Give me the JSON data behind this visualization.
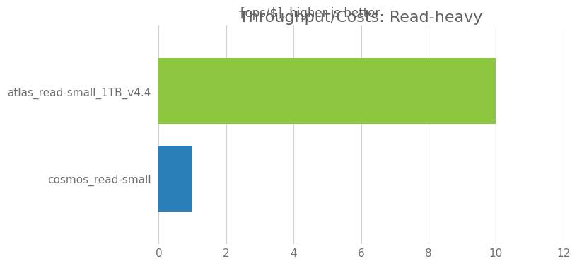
{
  "title": "Throughput/Costs: Read-heavy",
  "subtitle": "[ops/$], higher is better",
  "categories": [
    "cosmos_read-small",
    "atlas_read-small_1TB_v4.4"
  ],
  "values": [
    1.0,
    10.0
  ],
  "bar_colors": [
    "#2980b9",
    "#8dc63f"
  ],
  "xlim": [
    0,
    12
  ],
  "xticks": [
    0,
    2,
    4,
    6,
    8,
    10,
    12
  ],
  "title_fontsize": 16,
  "subtitle_fontsize": 12,
  "tick_label_fontsize": 11,
  "ytick_fontsize": 11,
  "background_color": "#ffffff",
  "grid_color": "#d0d0d0",
  "title_color": "#606060",
  "label_color": "#707070"
}
